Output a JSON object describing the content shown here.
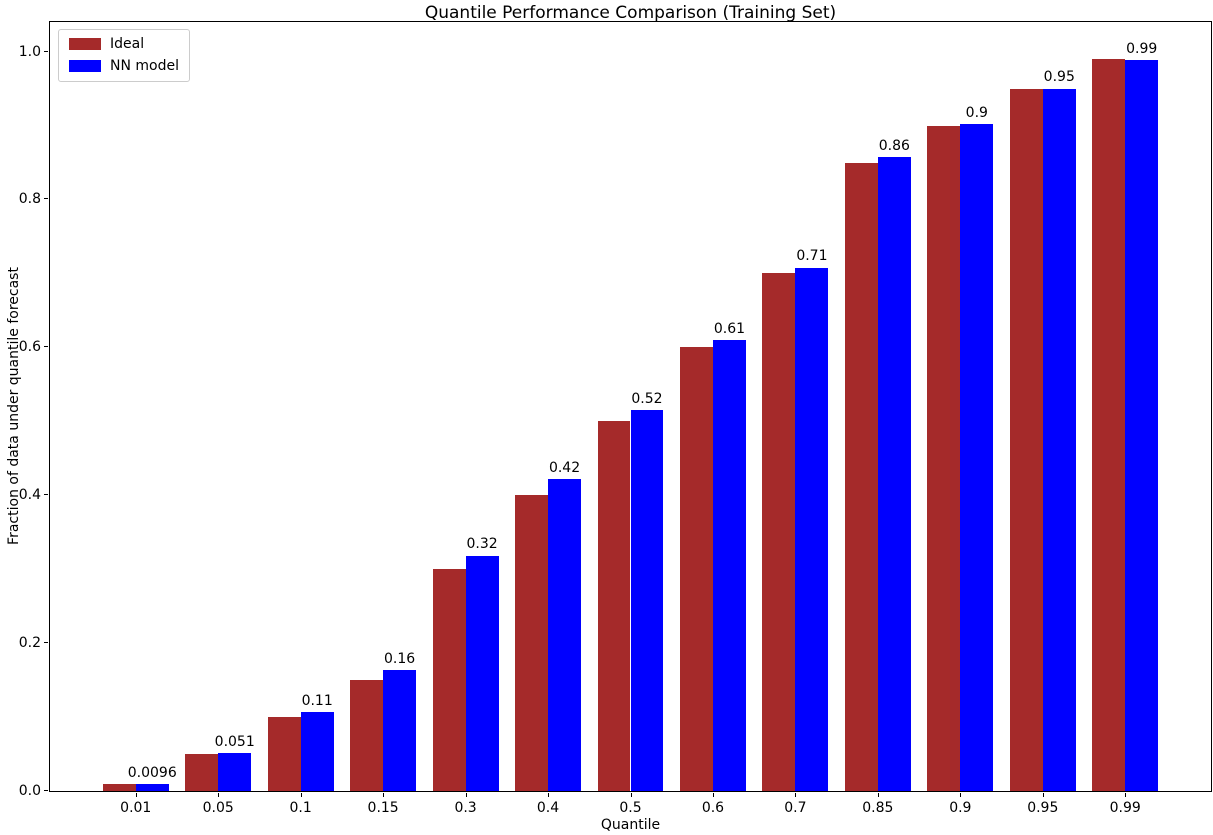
{
  "chart_data": {
    "type": "bar",
    "title": "Quantile Performance Comparison (Training Set)",
    "xlabel": "Quantile",
    "ylabel": "Fraction of data under quantile forecast",
    "categories": [
      "0.01",
      "0.05",
      "0.1",
      "0.15",
      "0.3",
      "0.4",
      "0.5",
      "0.6",
      "0.7",
      "0.85",
      "0.9",
      "0.95",
      "0.99"
    ],
    "series": [
      {
        "name": "Ideal",
        "color": "#A52A2A",
        "values": [
          0.01,
          0.05,
          0.1,
          0.15,
          0.3,
          0.4,
          0.5,
          0.6,
          0.7,
          0.85,
          0.9,
          0.95,
          0.99
        ]
      },
      {
        "name": "NN model",
        "color": "#0000FF",
        "values": [
          0.0096,
          0.051,
          0.107,
          0.163,
          0.318,
          0.422,
          0.515,
          0.61,
          0.708,
          0.857,
          0.902,
          0.95,
          0.988
        ]
      }
    ],
    "bar_labels": [
      "0.0096",
      "0.051",
      "0.11",
      "0.16",
      "0.32",
      "0.42",
      "0.52",
      "0.61",
      "0.71",
      "0.86",
      "0.9",
      "0.95",
      "0.99"
    ],
    "ylim": [
      0,
      1.04
    ],
    "yticks": [
      "0.0",
      "0.2",
      "0.4",
      "0.6",
      "0.8",
      "1.0"
    ],
    "bar_width_units": 0.4,
    "x_margin_units": 1.04,
    "legend_position": "upper left",
    "grid": false,
    "colors": {
      "background": "#ffffff",
      "text": "#000000",
      "spine": "#000000",
      "legend_border": "#cccccc"
    }
  }
}
